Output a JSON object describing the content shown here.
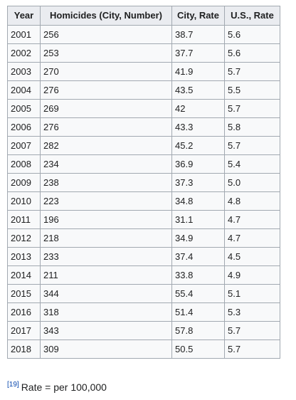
{
  "table": {
    "headers": [
      "Year",
      "Homicides (City, Number)",
      "City, Rate",
      "U.S., Rate"
    ],
    "rows": [
      [
        "2001",
        "256",
        "38.7",
        "5.6"
      ],
      [
        "2002",
        "253",
        "37.7",
        "5.6"
      ],
      [
        "2003",
        "270",
        "41.9",
        "5.7"
      ],
      [
        "2004",
        "276",
        "43.5",
        "5.5"
      ],
      [
        "2005",
        "269",
        "42",
        "5.7"
      ],
      [
        "2006",
        "276",
        "43.3",
        "5.8"
      ],
      [
        "2007",
        "282",
        "45.2",
        "5.7"
      ],
      [
        "2008",
        "234",
        "36.9",
        "5.4"
      ],
      [
        "2009",
        "238",
        "37.3",
        "5.0"
      ],
      [
        "2010",
        "223",
        "34.8",
        "4.8"
      ],
      [
        "2011",
        "196",
        "31.1",
        "4.7"
      ],
      [
        "2012",
        "218",
        "34.9",
        "4.7"
      ],
      [
        "2013",
        "233",
        "37.4",
        "4.5"
      ],
      [
        "2014",
        "211",
        "33.8",
        "4.9"
      ],
      [
        "2015",
        "344",
        "55.4",
        "5.1"
      ],
      [
        "2016",
        "318",
        "51.4",
        "5.3"
      ],
      [
        "2017",
        "343",
        "57.8",
        "5.7"
      ],
      [
        "2018",
        "309",
        "50.5",
        "5.7"
      ]
    ]
  },
  "footnote": {
    "ref": "[19]",
    "text": "Rate = per 100,000"
  }
}
